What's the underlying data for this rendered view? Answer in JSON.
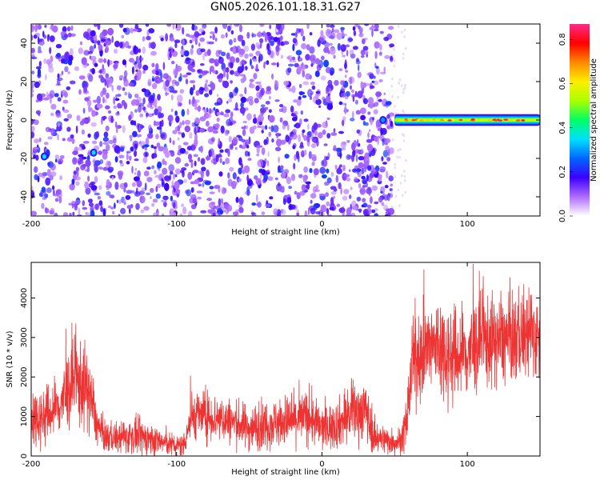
{
  "figure": {
    "title": "GN05.2026.101.18.31.G27"
  },
  "chart_data": [
    {
      "type": "heatmap",
      "title": "GN05.2026.101.18.31.G27",
      "xlabel": "Height of straight line (km)",
      "ylabel": "Frequency (Hz)",
      "xlim": [
        -200,
        150
      ],
      "ylim": [
        -50,
        50
      ],
      "xticks": [
        "-200",
        "-100",
        "0",
        "100"
      ],
      "yticks": [
        "-40",
        "-20",
        "0",
        "20",
        "40"
      ],
      "colorbar": {
        "label": "Normalized spectral amplitude",
        "range": [
          0.0,
          0.87
        ],
        "ticks": [
          "0.0",
          "0.2",
          "0.4",
          "0.6",
          "0.8"
        ],
        "colors": [
          "#ffffff",
          "#b06cff",
          "#3b00ff",
          "#0066ff",
          "#00e0ff",
          "#00ff66",
          "#aaff00",
          "#ffee00",
          "#ff8800",
          "#ff0000",
          "#ff2a88"
        ]
      },
      "noise_region": {
        "x": [
          -200,
          48
        ],
        "frequency": [
          -50,
          50
        ]
      },
      "signal_band": {
        "x": [
          50,
          150
        ],
        "frequency_center": 0,
        "frequency_halfwidth": 3,
        "peak_amplitude": 0.87
      },
      "hot_spots": [
        {
          "x": -191,
          "y": -19,
          "amplitude": 0.35
        },
        {
          "x": -157,
          "y": -17,
          "amplitude": 0.35
        },
        {
          "x": 42,
          "y": 0,
          "amplitude": 0.3
        }
      ]
    },
    {
      "type": "line",
      "xlabel": "Height of straight line (km)",
      "ylabel": "SNR (10 * v/v)",
      "xlim": [
        -200,
        150
      ],
      "ylim": [
        0,
        4900
      ],
      "xticks": [
        "-200",
        "-100",
        "0",
        "100"
      ],
      "yticks": [
        "0",
        "1000",
        "2000",
        "3000",
        "4000"
      ],
      "color": "#ee3333",
      "x": [
        -200,
        -190,
        -180,
        -175,
        -170,
        -165,
        -160,
        -155,
        -150,
        -140,
        -130,
        -120,
        -110,
        -100,
        -95,
        -90,
        -85,
        -80,
        -70,
        -60,
        -50,
        -40,
        -30,
        -20,
        -10,
        0,
        10,
        20,
        30,
        35,
        40,
        50,
        55,
        58,
        62,
        70,
        80,
        90,
        100,
        110,
        120,
        130,
        140,
        150
      ],
      "y_mean": [
        1000,
        1000,
        1300,
        1650,
        1850,
        1800,
        1600,
        800,
        500,
        450,
        500,
        450,
        350,
        250,
        300,
        1000,
        1050,
        1000,
        950,
        850,
        700,
        800,
        850,
        900,
        1000,
        700,
        800,
        1050,
        1200,
        500,
        450,
        350,
        400,
        800,
        2300,
        2650,
        2800,
        2500,
        2600,
        2900,
        2900,
        2950,
        3100,
        3000
      ],
      "y_spread": [
        700,
        650,
        700,
        900,
        1000,
        1000,
        900,
        450,
        350,
        350,
        400,
        400,
        300,
        250,
        280,
        550,
        550,
        550,
        550,
        500,
        500,
        550,
        550,
        550,
        600,
        500,
        550,
        650,
        700,
        400,
        350,
        300,
        320,
        600,
        900,
        1000,
        1200,
        1100,
        1100,
        1100,
        1000,
        1000,
        1050,
        900
      ]
    }
  ]
}
